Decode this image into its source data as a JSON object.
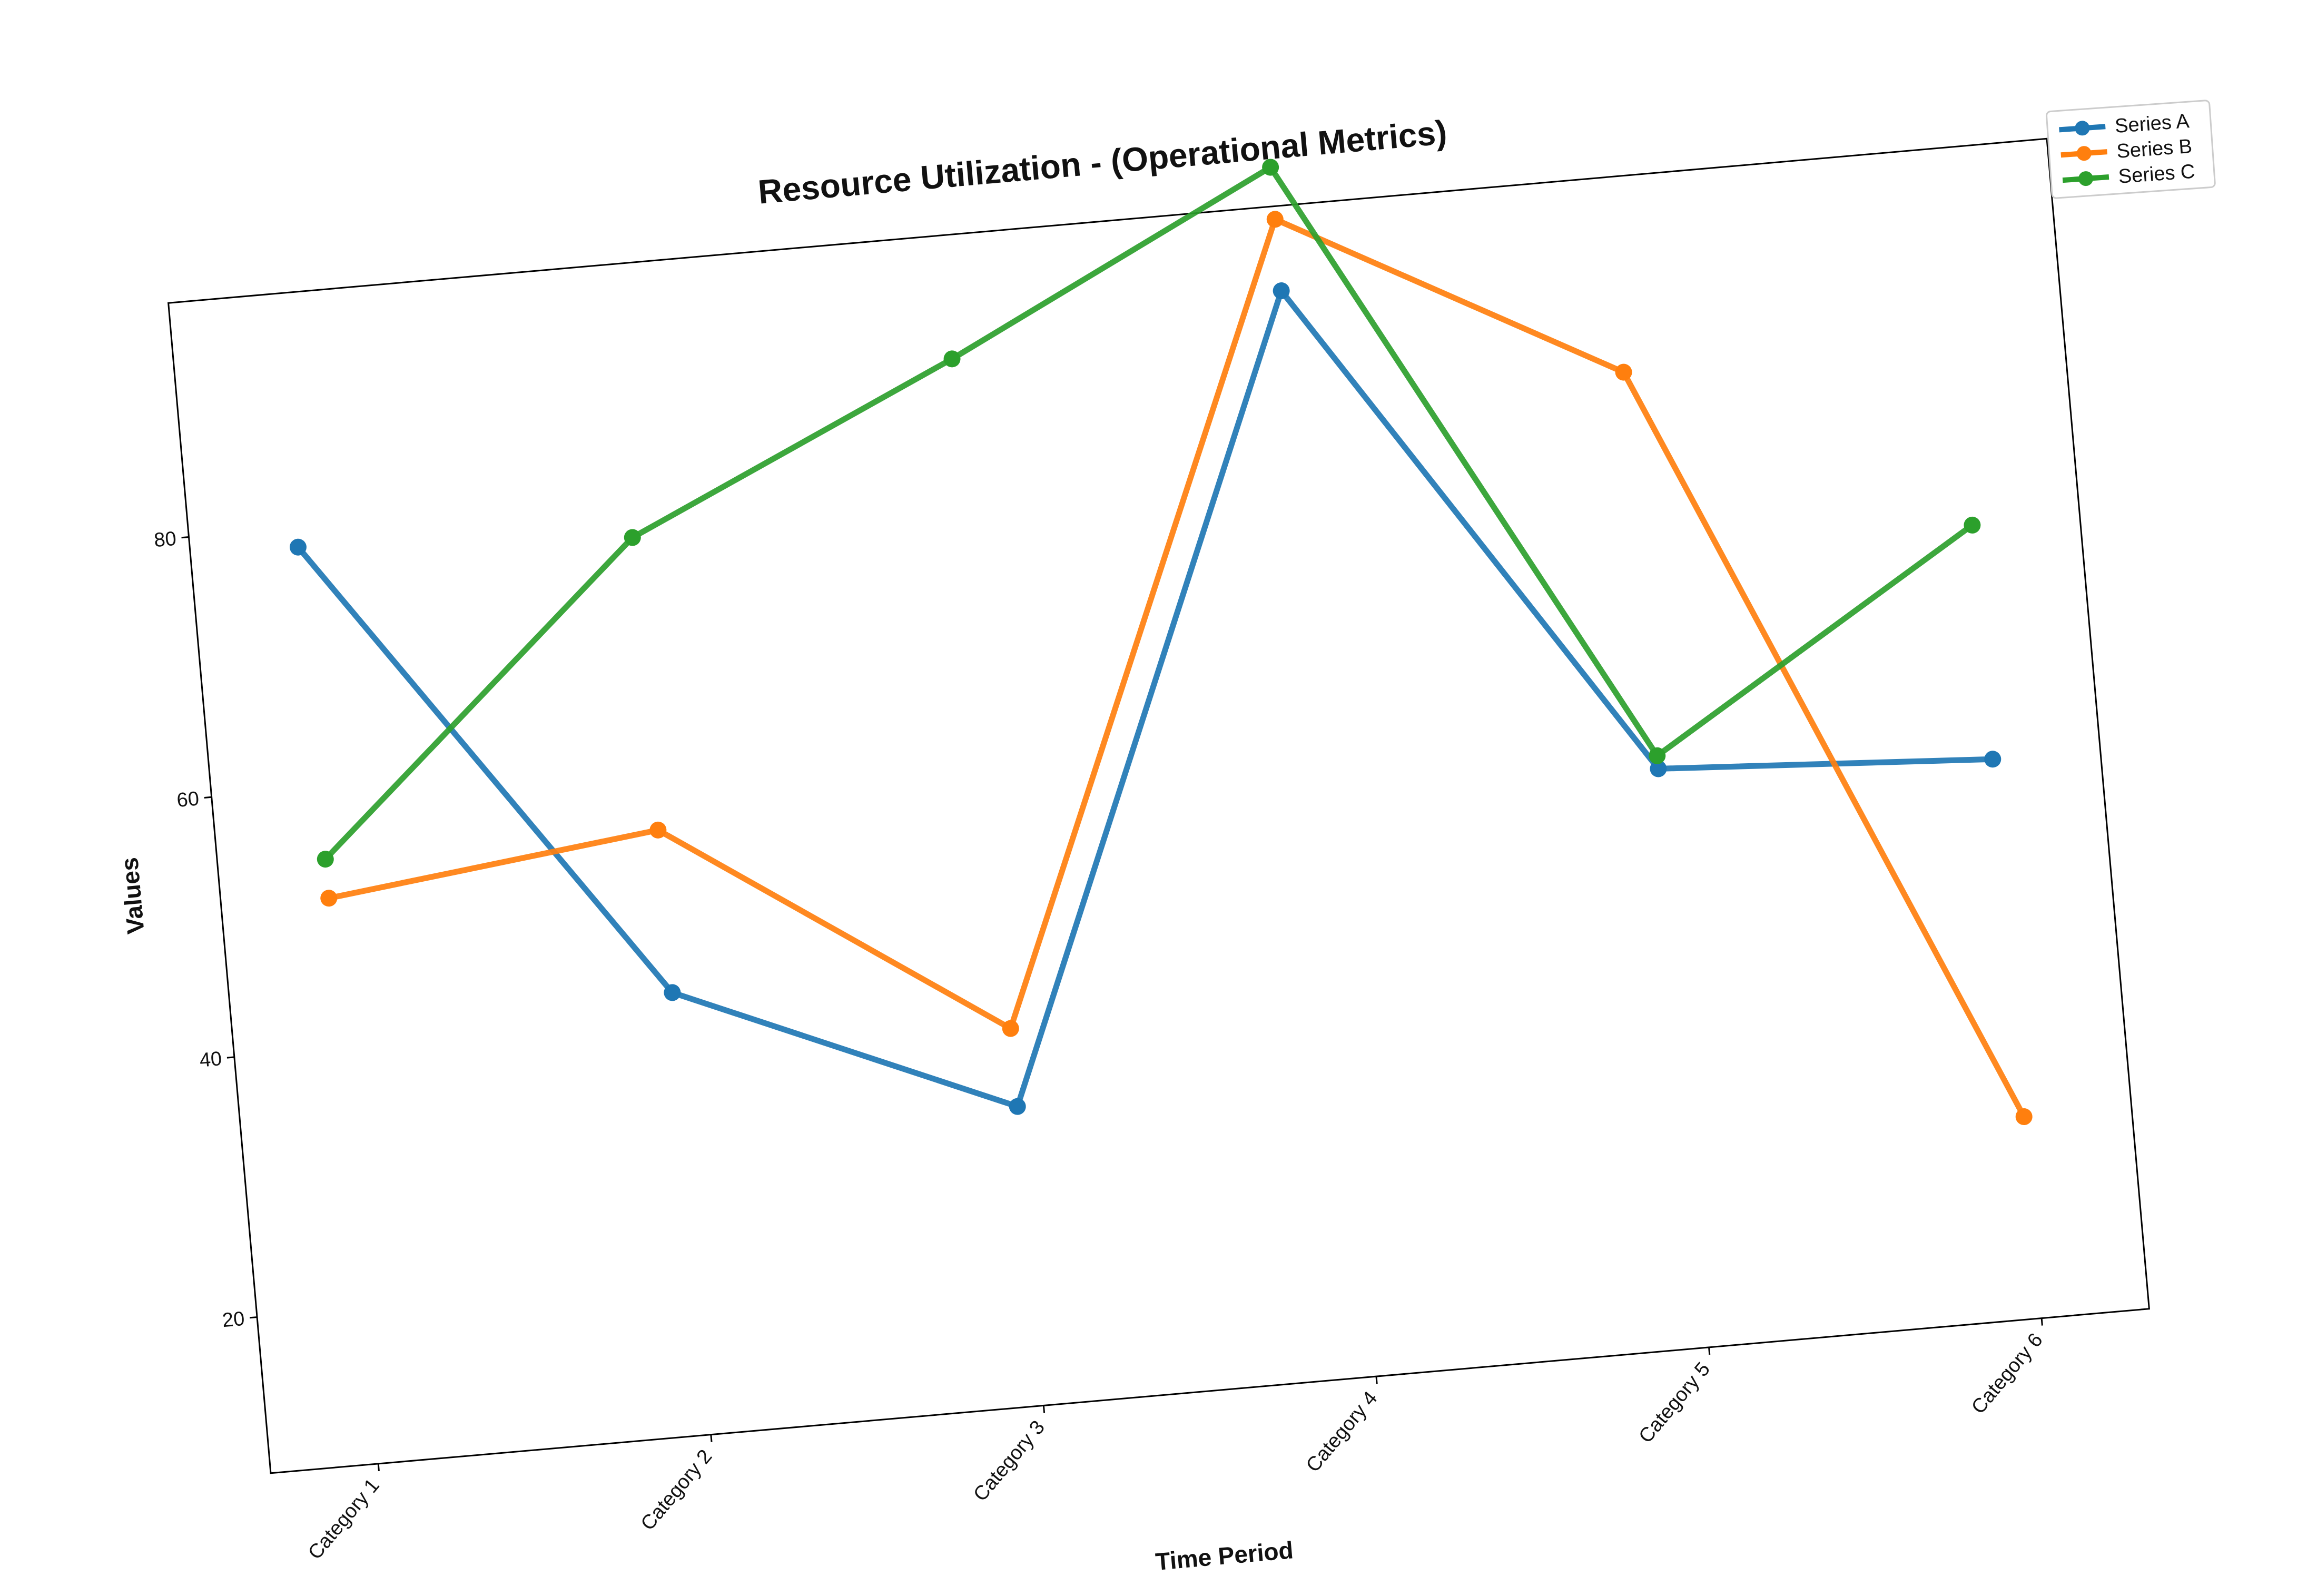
{
  "chart_data": {
    "type": "line",
    "title": "Resource Utilization - (Operational Metrics)",
    "xlabel": "Time Period",
    "ylabel": "Values",
    "categories": [
      "Category 1",
      "Category 2",
      "Category 3",
      "Category 4",
      "Category 5",
      "Category 6"
    ],
    "y_ticks": [
      20,
      40,
      60,
      80
    ],
    "ylim": [
      8,
      98
    ],
    "grid": false,
    "legend_position": "top-right (outside)",
    "series": [
      {
        "name": "Series A",
        "color": "#1f77b4",
        "values": [
          78.5,
          42.0,
          31.0,
          91.5,
          52.5,
          51.0
        ]
      },
      {
        "name": "Series B",
        "color": "#ff7f0e",
        "values": [
          51.5,
          54.5,
          37.0,
          97.0,
          83.0,
          23.5
        ]
      },
      {
        "name": "Series C",
        "color": "#2ca02c",
        "values": [
          54.5,
          77.0,
          88.5,
          101.0,
          53.5,
          69.0
        ]
      }
    ]
  }
}
